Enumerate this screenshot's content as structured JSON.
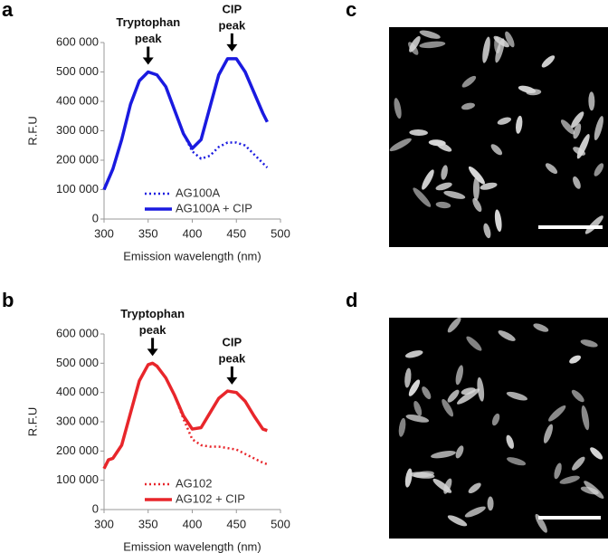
{
  "panel_labels": [
    "a",
    "b",
    "c",
    "d"
  ],
  "chart_data": [
    {
      "type": "line",
      "xlabel": "Emission wavelength (nm)",
      "ylabel": "R.F.U",
      "x": [
        300,
        310,
        320,
        330,
        340,
        350,
        360,
        370,
        380,
        390,
        400,
        410,
        420,
        430,
        440,
        450,
        460,
        470,
        480,
        485
      ],
      "series": [
        {
          "name": "AG100A",
          "color": "#1a1ae0",
          "style": "dotted",
          "values": [
            100000,
            170000,
            270000,
            390000,
            470000,
            500000,
            490000,
            450000,
            370000,
            290000,
            230000,
            205000,
            215000,
            245000,
            260000,
            260000,
            250000,
            220000,
            190000,
            175000
          ]
        },
        {
          "name": "AG100A + CIP",
          "color": "#1a1ae0",
          "style": "solid",
          "values": [
            100000,
            170000,
            270000,
            390000,
            470000,
            500000,
            490000,
            450000,
            370000,
            290000,
            240000,
            270000,
            380000,
            490000,
            545000,
            545000,
            500000,
            430000,
            360000,
            330000
          ]
        }
      ],
      "annotations": [
        {
          "lines": [
            "Tryptophan",
            "peak"
          ],
          "x": 350
        },
        {
          "lines": [
            "CIP",
            "peak"
          ],
          "x": 445
        }
      ],
      "xlim": [
        300,
        500
      ],
      "xticks": [
        300,
        350,
        400,
        450,
        500
      ],
      "ylim": [
        0,
        600000
      ],
      "yticks": [
        0,
        {
          "value": 100000,
          "label": "100 000"
        },
        {
          "value": 200000,
          "label": "200 000"
        },
        {
          "value": 300000,
          "label": "300 000"
        },
        {
          "value": 400000,
          "label": "400 000"
        },
        {
          "value": 500000,
          "label": "500 000"
        },
        {
          "value": 600000,
          "label": "600 000"
        }
      ]
    },
    {
      "type": "line",
      "xlabel": "Emission wavelength (nm)",
      "ylabel": "R.F.U",
      "x": [
        300,
        305,
        310,
        320,
        330,
        340,
        350,
        355,
        360,
        370,
        380,
        390,
        400,
        410,
        420,
        430,
        440,
        450,
        460,
        470,
        480,
        485
      ],
      "series": [
        {
          "name": "AG102",
          "color": "#e8262b",
          "style": "dotted",
          "values": [
            140000,
            170000,
            175000,
            220000,
            330000,
            440000,
            495000,
            500000,
            490000,
            450000,
            390000,
            310000,
            240000,
            220000,
            215000,
            215000,
            210000,
            205000,
            190000,
            175000,
            160000,
            155000
          ]
        },
        {
          "name": "AG102 + CIP",
          "color": "#e8262b",
          "style": "solid",
          "values": [
            140000,
            170000,
            175000,
            220000,
            330000,
            440000,
            495000,
            500000,
            490000,
            450000,
            390000,
            320000,
            275000,
            280000,
            330000,
            380000,
            405000,
            400000,
            370000,
            320000,
            275000,
            270000
          ]
        }
      ],
      "annotations": [
        {
          "lines": [
            "Tryptophan",
            "peak"
          ],
          "x": 355
        },
        {
          "lines": [
            "CIP",
            "peak"
          ],
          "x": 445
        }
      ],
      "xlim": [
        300,
        500
      ],
      "xticks": [
        300,
        350,
        400,
        450,
        500
      ],
      "ylim": [
        0,
        600000
      ],
      "yticks": [
        0,
        {
          "value": 100000,
          "label": "100 000"
        },
        {
          "value": 200000,
          "label": "200 000"
        },
        {
          "value": 300000,
          "label": "300 000"
        },
        {
          "value": 400000,
          "label": "400 000"
        },
        {
          "value": 500000,
          "label": "500 000"
        },
        {
          "value": 600000,
          "label": "600 000"
        }
      ]
    }
  ]
}
